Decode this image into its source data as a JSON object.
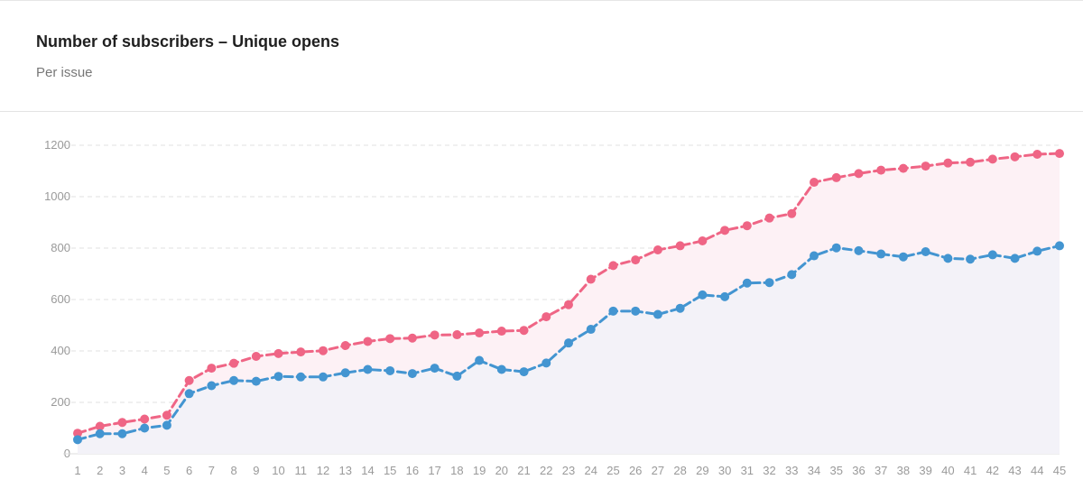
{
  "header": {
    "title": "Number of subscribers – Unique opens",
    "subtitle": "Per issue"
  },
  "colors": {
    "subscribers": "#ef6585",
    "opens": "#4395d1",
    "subscribers_fill": "#fdf1f5",
    "opens_fill": "#f3f2f8",
    "grid": "#e2e2e2",
    "tick_text": "#9a9a9a"
  },
  "chart_data": {
    "type": "line",
    "title": "Number of subscribers – Unique opens",
    "subtitle": "Per issue",
    "xlabel": "",
    "ylabel": "",
    "ylim": [
      0,
      1200
    ],
    "yticks": [
      0,
      200,
      400,
      600,
      800,
      1000,
      1200
    ],
    "grid": true,
    "x": [
      1,
      2,
      3,
      4,
      5,
      6,
      7,
      8,
      9,
      10,
      11,
      12,
      13,
      14,
      15,
      16,
      17,
      18,
      19,
      20,
      21,
      22,
      23,
      24,
      25,
      26,
      27,
      28,
      29,
      30,
      31,
      32,
      33,
      34,
      35,
      36,
      37,
      38,
      39,
      40,
      41,
      42,
      43,
      44,
      45
    ],
    "series": [
      {
        "key": "subscribers",
        "values": [
          80,
          107,
          122,
          135,
          150,
          285,
          333,
          352,
          379,
          390,
          396,
          401,
          421,
          437,
          448,
          450,
          462,
          463,
          470,
          477,
          480,
          533,
          580,
          679,
          732,
          754,
          793,
          809,
          828,
          869,
          887,
          917,
          934,
          1056,
          1074,
          1090,
          1103,
          1110,
          1119,
          1131,
          1134,
          1146,
          1155,
          1165,
          1168
        ]
      },
      {
        "key": "opens",
        "values": [
          55,
          78,
          78,
          100,
          111,
          234,
          265,
          285,
          282,
          301,
          299,
          299,
          315,
          328,
          323,
          312,
          333,
          302,
          363,
          328,
          319,
          353,
          431,
          484,
          555,
          555,
          542,
          566,
          618,
          611,
          664,
          666,
          697,
          770,
          801,
          790,
          777,
          766,
          786,
          760,
          757,
          774,
          760,
          788,
          809
        ]
      }
    ]
  }
}
